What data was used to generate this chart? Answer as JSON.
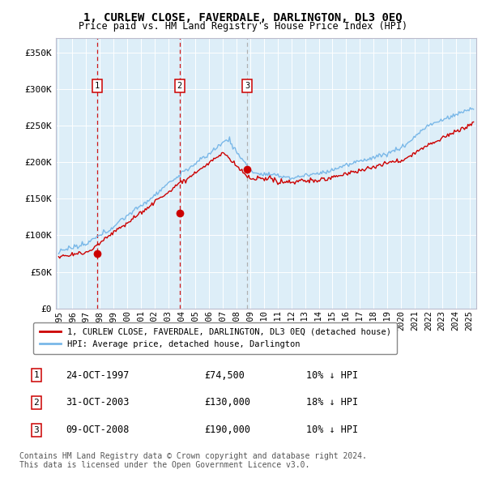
{
  "title": "1, CURLEW CLOSE, FAVERDALE, DARLINGTON, DL3 0EQ",
  "subtitle": "Price paid vs. HM Land Registry's House Price Index (HPI)",
  "sales": [
    {
      "date": 1997.81,
      "price": 74500,
      "label": "1"
    },
    {
      "date": 2003.83,
      "price": 130000,
      "label": "2"
    },
    {
      "date": 2008.77,
      "price": 190000,
      "label": "3"
    }
  ],
  "sale_annotations": [
    {
      "label": "1",
      "date": "24-OCT-1997",
      "price": "£74,500",
      "pct": "10% ↓ HPI"
    },
    {
      "label": "2",
      "date": "31-OCT-2003",
      "price": "£130,000",
      "pct": "18% ↓ HPI"
    },
    {
      "label": "3",
      "date": "09-OCT-2008",
      "price": "£190,000",
      "pct": "10% ↓ HPI"
    }
  ],
  "hpi_color": "#7ab8e8",
  "sale_color": "#cc0000",
  "dashed_color_12": "#cc0000",
  "dashed_color_3": "#aaaaaa",
  "ylabel_ticks": [
    "£0",
    "£50K",
    "£100K",
    "£150K",
    "£200K",
    "£250K",
    "£300K",
    "£350K"
  ],
  "ytick_vals": [
    0,
    50000,
    100000,
    150000,
    200000,
    250000,
    300000,
    350000
  ],
  "xmin": 1994.8,
  "xmax": 2025.5,
  "ymin": 0,
  "ymax": 370000,
  "legend_label_red": "1, CURLEW CLOSE, FAVERDALE, DARLINGTON, DL3 0EQ (detached house)",
  "legend_label_blue": "HPI: Average price, detached house, Darlington",
  "footer1": "Contains HM Land Registry data © Crown copyright and database right 2024.",
  "footer2": "This data is licensed under the Open Government Licence v3.0."
}
